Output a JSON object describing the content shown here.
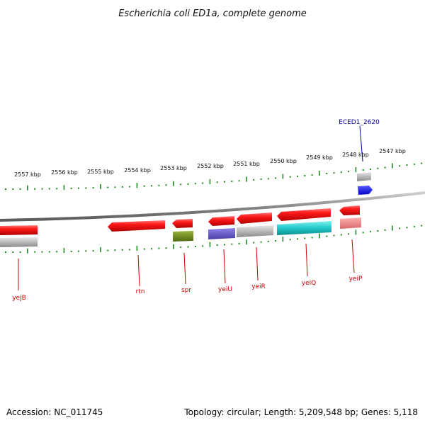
{
  "title": "Escherichia coli ED1a, complete genome",
  "footer": {
    "accession": "Accession: NC_011745",
    "summary": "Topology: circular; Length: 5,209,548 bp; Genes: 5,118"
  },
  "scale_labels": [
    "2557 kbp",
    "2556 kbp",
    "2555 kbp",
    "2554 kbp",
    "2553 kbp",
    "2552 kbp",
    "2551 kbp",
    "2550 kbp",
    "2549 kbp",
    "2548 kbp",
    "2547 kbp"
  ],
  "gene_labels": {
    "yejB": "yejB",
    "rtn": "rtn",
    "spr": "spr",
    "yeiU": "yeiU",
    "yeiR": "yeiR",
    "yeiQ": "yeiQ",
    "yeiP": "yeiP",
    "ECED1_2620": "ECED1_2620"
  },
  "colors": {
    "gene_red": "#ff1a1a",
    "label_red": "#cc0000",
    "label_blue": "#0000aa",
    "tick_green": "#1a8a1a",
    "backbone": "#8a8a8a",
    "spr_box": "#6a8a1a",
    "yeiU_box": "#6a5acd",
    "yeiQ_box": "#20c8c8",
    "yeiP_box": "#f08080",
    "gray_box": "#b4b4b4",
    "blue_gene": "#0000ff"
  }
}
